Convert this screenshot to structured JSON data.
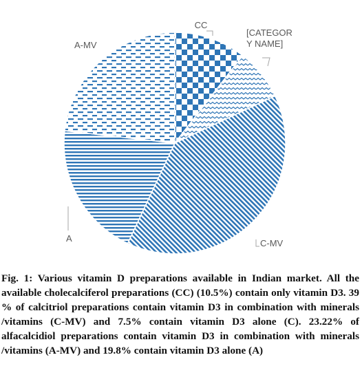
{
  "chart_data": {
    "type": "pie",
    "categories": [
      "CC",
      "[CATEGORY NAME]",
      "C-MV",
      "A",
      "A-MV"
    ],
    "values": [
      10.5,
      7.5,
      39,
      19.8,
      23.22
    ],
    "category_label_lines": [
      [
        "CC"
      ],
      [
        "[CATEGOR",
        "Y NAME]"
      ],
      [
        "C-MV"
      ],
      [
        "A"
      ],
      [
        "A-MV"
      ]
    ],
    "colors": {
      "fill": "#2e75b6",
      "background": "#ffffff",
      "leader": "#a6a6a6",
      "label": "#595959"
    },
    "patterns": [
      "checkerboard",
      "wave",
      "diagonal-stripes",
      "horizontal-stripes",
      "dashed-horizontal"
    ],
    "legend": "none"
  },
  "caption": "Fig. 1: Various vitamin D preparations available in Indian market. All the available cholecalciferol preparations (CC) (10.5%) contain only vitamin D3. 39 % of calcitriol preparations contain vitamin D3 in combination with minerals /vitamins (C-MV) and 7.5% contain vitamin D3 alone (C). 23.22% of alfacalcidiol preparations contain vitamin D3 in combination with minerals /vitamins (A-MV) and 19.8% contain vitamin D3 alone (A)"
}
